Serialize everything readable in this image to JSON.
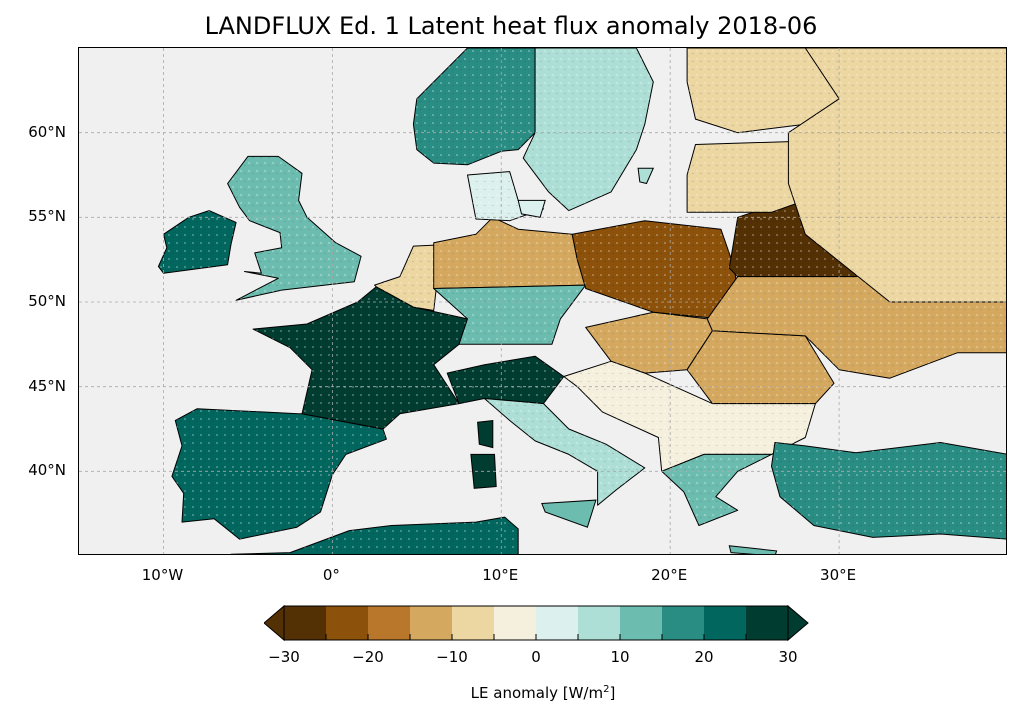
{
  "title": "LANDFLUX Ed. 1 Latent heat flux anomaly 2018-06",
  "lat_labels": [
    "60°N",
    "55°N",
    "50°N",
    "45°N",
    "40°N"
  ],
  "lon_labels": [
    "10°W",
    "0°",
    "10°E",
    "20°E",
    "30°E"
  ],
  "colorbar": {
    "ticks": [
      "−30",
      "−20",
      "−10",
      "0",
      "10",
      "20",
      "30"
    ],
    "label_prefix": "LE anomaly [W/m",
    "label_exponent": "2",
    "label_suffix": "]",
    "colors": [
      "#543005",
      "#8c510a",
      "#b8772a",
      "#d5a860",
      "#ecd6a2",
      "#f5f0de",
      "#dcf0ee",
      "#addfd7",
      "#6cbdb0",
      "#2a8d84",
      "#01665e",
      "#003c30"
    ],
    "under_color": "#543005",
    "over_color": "#003c30"
  },
  "map": {
    "extent": {
      "lon_min": -15,
      "lon_max": 40,
      "lat_min": 35,
      "lat_max": 65
    },
    "ocean_color": "#f0f0f0",
    "regions": [
      {
        "name": "iberia",
        "anomaly": 22
      },
      {
        "name": "france",
        "anomaly": 28
      },
      {
        "name": "northern-italy",
        "anomaly": 27
      },
      {
        "name": "central-italy",
        "anomaly": 8
      },
      {
        "name": "uk",
        "anomaly": 12
      },
      {
        "name": "ireland",
        "anomaly": 20
      },
      {
        "name": "benelux",
        "anomaly": -6
      },
      {
        "name": "germany-north",
        "anomaly": -12
      },
      {
        "name": "germany-south",
        "anomaly": 10
      },
      {
        "name": "poland",
        "anomaly": -22
      },
      {
        "name": "belarus",
        "anomaly": -27
      },
      {
        "name": "baltics",
        "anomaly": -8
      },
      {
        "name": "norway",
        "anomaly": 15
      },
      {
        "name": "sweden",
        "anomaly": 6
      },
      {
        "name": "finland",
        "anomaly": -10
      },
      {
        "name": "hungary",
        "anomaly": -15
      },
      {
        "name": "romania",
        "anomaly": -12
      },
      {
        "name": "ukraine",
        "anomaly": -14
      },
      {
        "name": "balkans",
        "anomaly": -5
      },
      {
        "name": "greece",
        "anomaly": 12
      },
      {
        "name": "turkey",
        "anomaly": 18
      },
      {
        "name": "north-africa",
        "anomaly": 22
      },
      {
        "name": "russia-west",
        "anomaly": -6
      },
      {
        "name": "denmark",
        "anomaly": 2
      }
    ]
  }
}
